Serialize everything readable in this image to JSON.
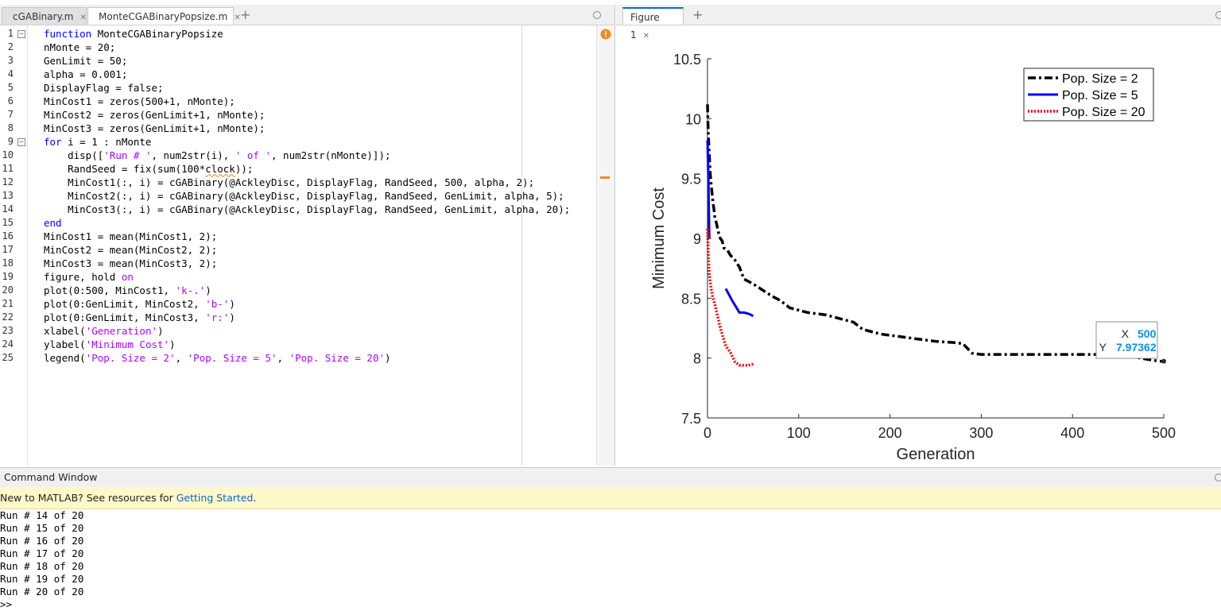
{
  "editor": {
    "tabs": [
      {
        "label": "cGABinary.m",
        "active": false
      },
      {
        "label": "MonteCGABinaryPopsize.m",
        "active": true
      }
    ],
    "lines": [
      [
        [
          "kw",
          "function"
        ],
        [
          "t",
          " MonteCGABinaryPopsize"
        ]
      ],
      [
        [
          "t",
          "nMonte = 20;"
        ]
      ],
      [
        [
          "t",
          "GenLimit = 50;"
        ]
      ],
      [
        [
          "t",
          "alpha = 0.001;"
        ]
      ],
      [
        [
          "t",
          "DisplayFlag = false;"
        ]
      ],
      [
        [
          "t",
          "MinCost1 = zeros(500+1, nMonte);"
        ]
      ],
      [
        [
          "t",
          "MinCost2 = zeros(GenLimit+1, nMonte);"
        ]
      ],
      [
        [
          "t",
          "MinCost3 = zeros(GenLimit+1, nMonte);"
        ]
      ],
      [
        [
          "kw",
          "for"
        ],
        [
          "t",
          " i = 1 : nMonte"
        ]
      ],
      [
        [
          "t",
          "    disp(["
        ],
        [
          "str",
          "'Run # '"
        ],
        [
          "t",
          ", num2str(i), "
        ],
        [
          "str",
          "' of '"
        ],
        [
          "t",
          ", num2str(nMonte)]);"
        ]
      ],
      [
        [
          "t",
          "    RandSeed = fix(sum(100*"
        ],
        [
          "wavy",
          "clock"
        ],
        [
          "t",
          "));"
        ]
      ],
      [
        [
          "t",
          "    MinCost1(:, i) = cGABinary(@AckleyDisc, DisplayFlag, RandSeed, 500, alpha, 2);"
        ]
      ],
      [
        [
          "t",
          "    MinCost2(:, i) = cGABinary(@AckleyDisc, DisplayFlag, RandSeed, GenLimit, alpha, 5);"
        ]
      ],
      [
        [
          "t",
          "    MinCost3(:, i) = cGABinary(@AckleyDisc, DisplayFlag, RandSeed, GenLimit, alpha, 20);"
        ]
      ],
      [
        [
          "kw",
          "end"
        ]
      ],
      [
        [
          "t",
          "MinCost1 = mean(MinCost1, 2);"
        ]
      ],
      [
        [
          "t",
          "MinCost2 = mean(MinCost2, 2);"
        ]
      ],
      [
        [
          "t",
          "MinCost3 = mean(MinCost3, 2);"
        ]
      ],
      [
        [
          "t",
          "figure, hold "
        ],
        [
          "str",
          "on"
        ]
      ],
      [
        [
          "t",
          "plot(0:500, MinCost1, "
        ],
        [
          "str",
          "'k-.'"
        ],
        [
          "t",
          ")"
        ]
      ],
      [
        [
          "t",
          "plot(0:GenLimit, MinCost2, "
        ],
        [
          "str",
          "'b-'"
        ],
        [
          "t",
          ")"
        ]
      ],
      [
        [
          "t",
          "plot(0:GenLimit, MinCost3, "
        ],
        [
          "str",
          "'r:'"
        ],
        [
          "t",
          ")"
        ]
      ],
      [
        [
          "t",
          "xlabel("
        ],
        [
          "str",
          "'Generation'"
        ],
        [
          "t",
          ")"
        ]
      ],
      [
        [
          "t",
          "ylabel("
        ],
        [
          "str",
          "'Minimum Cost'"
        ],
        [
          "t",
          ")"
        ]
      ],
      [
        [
          "t",
          "legend("
        ],
        [
          "str",
          "'Pop. Size = 2'"
        ],
        [
          "t",
          ", "
        ],
        [
          "str",
          "'Pop. Size = 5'"
        ],
        [
          "t",
          ", "
        ],
        [
          "str",
          "'Pop. Size = 20'"
        ],
        [
          "t",
          ")"
        ]
      ]
    ]
  },
  "figure": {
    "tab_label": "Figure 1"
  },
  "chart_data": {
    "type": "line",
    "title": "",
    "xlabel": "Generation",
    "ylabel": "Minimum Cost",
    "xlim": [
      0,
      500
    ],
    "ylim": [
      7.5,
      10.5
    ],
    "xticks": [
      0,
      100,
      200,
      300,
      400,
      500
    ],
    "yticks": [
      7.5,
      8,
      8.5,
      9,
      9.5,
      10,
      10.5
    ],
    "xtick_labels": [
      "0",
      "100",
      "200",
      "300",
      "400",
      "500"
    ],
    "ytick_labels": [
      "7.5",
      "8",
      "8.5",
      "9",
      "9.5",
      "10",
      "10.5"
    ],
    "legend_position": "top-right",
    "series": [
      {
        "name": "Pop. Size = 2",
        "color": "#000000",
        "style": "dashdot",
        "x": [
          0,
          1,
          2,
          3,
          4,
          5,
          6,
          7,
          8,
          10,
          12,
          14,
          16,
          18,
          22,
          25,
          30,
          35,
          40,
          50,
          60,
          70,
          75,
          80,
          90,
          100,
          110,
          130,
          140,
          150,
          160,
          170,
          180,
          190,
          200,
          210,
          230,
          250,
          270,
          280,
          290,
          300,
          350,
          400,
          450,
          490,
          500
        ],
        "y": [
          10.12,
          9.85,
          9.7,
          9.55,
          9.45,
          9.38,
          9.3,
          9.25,
          9.18,
          9.12,
          9.05,
          9.0,
          8.98,
          8.92,
          8.9,
          8.86,
          8.82,
          8.76,
          8.66,
          8.62,
          8.57,
          8.52,
          8.5,
          8.48,
          8.42,
          8.4,
          8.38,
          8.36,
          8.34,
          8.32,
          8.3,
          8.24,
          8.22,
          8.2,
          8.19,
          8.18,
          8.16,
          8.14,
          8.13,
          8.12,
          8.04,
          8.03,
          8.03,
          8.03,
          8.03,
          7.98,
          7.97
        ]
      },
      {
        "name": "Pop. Size = 5",
        "color": "#0000ff",
        "style": "solid",
        "x": [
          0,
          1,
          2,
          3,
          20,
          27,
          35,
          40,
          45,
          48,
          50
        ],
        "y": [
          9.82,
          9.5,
          9.0,
          null,
          8.58,
          8.48,
          8.38,
          8.38,
          8.37,
          8.36,
          8.35
        ]
      },
      {
        "name": "Pop. Size = 20",
        "color": "#ff0000",
        "style": "dotted",
        "x": [
          0,
          1,
          2,
          4,
          6,
          8,
          10,
          12,
          14,
          16,
          18,
          20,
          25,
          30,
          35,
          40,
          45,
          50
        ],
        "y": [
          9.08,
          8.85,
          8.7,
          8.58,
          8.5,
          8.45,
          8.38,
          8.32,
          8.25,
          8.2,
          8.15,
          8.1,
          8.05,
          7.97,
          7.94,
          7.94,
          7.94,
          7.95
        ]
      }
    ],
    "datatip": {
      "x_label": "X",
      "x_value": "500",
      "y_label": "Y",
      "y_value": "7.97362"
    }
  },
  "command_window": {
    "title": "Command Window",
    "notice_text": "New to MATLAB? See resources for ",
    "notice_link": "Getting Started",
    "notice_end": ".",
    "output": [
      "Run # 14 of 20",
      "Run # 15 of 20",
      "Run # 16 of 20",
      "Run # 17 of 20",
      "Run # 18 of 20",
      "Run # 19 of 20",
      "Run # 20 of 20"
    ],
    "prompt": ">>"
  },
  "colors": {
    "accent": "#0072bd",
    "datatip_value": "#0b90e0",
    "warning": "#f08a24"
  }
}
